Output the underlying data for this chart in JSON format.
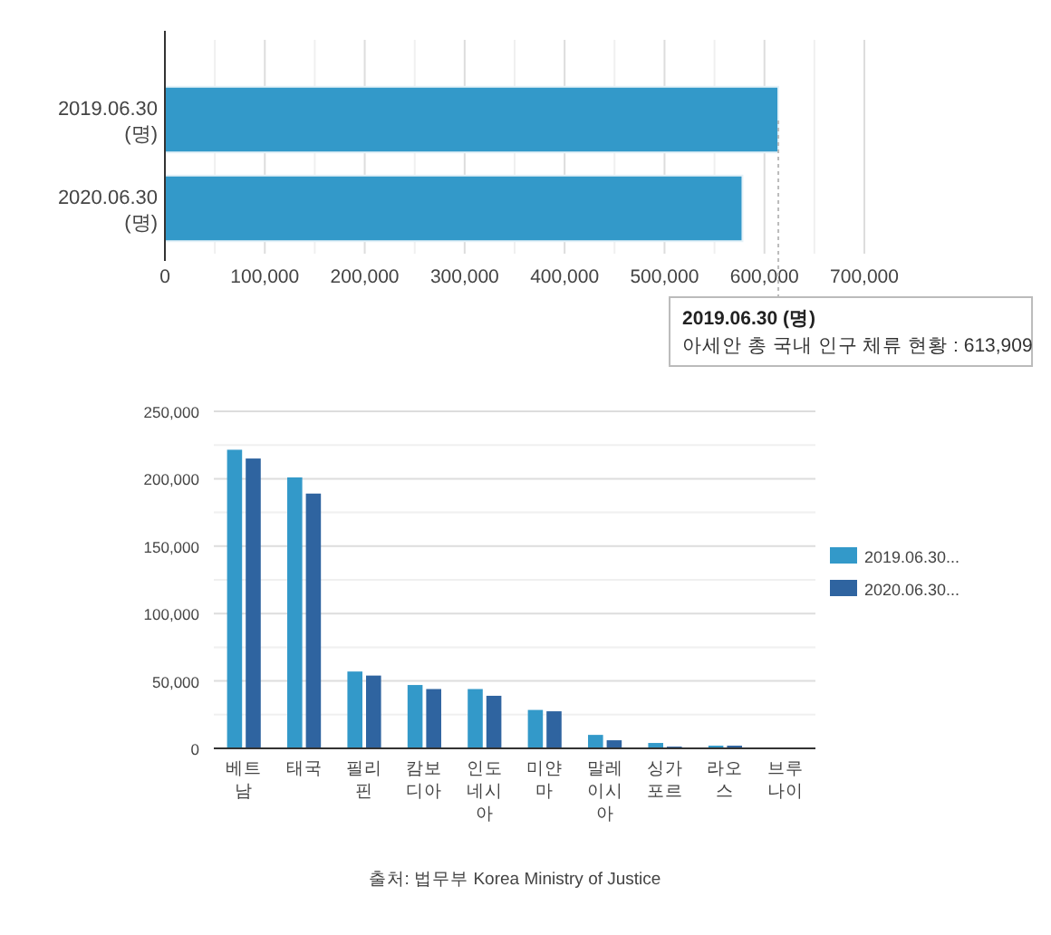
{
  "chart_data": [
    {
      "type": "bar",
      "orientation": "horizontal",
      "categories": [
        "2019.06.30 (명)",
        "2020.06.30 (명)"
      ],
      "series": [
        {
          "color": "#3399c9",
          "values": [
            613909,
            578000
          ]
        }
      ],
      "xlim": [
        0,
        700000
      ],
      "xticks": [
        0,
        {
          "value": 50000,
          "label": null
        },
        {
          "value": 100000,
          "label": "100,000"
        },
        {
          "value": 150000,
          "label": null
        },
        {
          "value": 200000,
          "label": "200,000"
        },
        {
          "value": 250000,
          "label": null
        },
        {
          "value": 300000,
          "label": "300,000"
        },
        {
          "value": 350000,
          "label": null
        },
        {
          "value": 400000,
          "label": "400,000"
        },
        {
          "value": 450000,
          "label": null
        },
        {
          "value": 500000,
          "label": "500,000"
        },
        {
          "value": 550000,
          "label": null
        },
        {
          "value": 600000,
          "label": "600,000"
        },
        {
          "value": 650000,
          "label": null
        },
        {
          "value": 700000,
          "label": "700,000"
        }
      ],
      "grid": "x",
      "legend": false,
      "annotations": [
        {
          "text": "2019.06.30 (명)\n아세안 총 국내 인구 체류 현황 : 613,909",
          "x": 613909,
          "y": "2019.06.30 (명)"
        }
      ]
    },
    {
      "type": "bar",
      "categories": [
        "베트남",
        "태국",
        "필리핀",
        "캄보디아",
        "인도네시아",
        "미얀마",
        "말레이시아",
        "싱가포르",
        "라오스",
        "브루나이"
      ],
      "series": [
        {
          "name": "2019.06.30...",
          "color": "#3399c9",
          "values": [
            221500,
            201000,
            57000,
            47000,
            44000,
            28500,
            10000,
            4000,
            2000,
            null
          ]
        },
        {
          "name": "2020.06.30...",
          "color": "#2f64a0",
          "values": [
            215000,
            189000,
            54000,
            44000,
            39000,
            27500,
            6000,
            1300,
            2000,
            null
          ]
        }
      ],
      "ylim": [
        0,
        250000
      ],
      "yticks": [
        0,
        {
          "value": 25000,
          "label": null
        },
        {
          "value": 50000,
          "label": "50,000"
        },
        {
          "value": 75000,
          "label": null
        },
        {
          "value": 100000,
          "label": "100,000"
        },
        {
          "value": 125000,
          "label": null
        },
        {
          "value": 150000,
          "label": "150,000"
        },
        {
          "value": 175000,
          "label": null
        },
        {
          "value": 200000,
          "label": "200,000"
        },
        {
          "value": 225000,
          "label": null
        },
        {
          "value": 250000,
          "label": "250,000"
        }
      ],
      "grid": "y",
      "legend": "right",
      "annotations": [
        "출처: 법무부 Korea Ministry of Justice"
      ]
    }
  ]
}
